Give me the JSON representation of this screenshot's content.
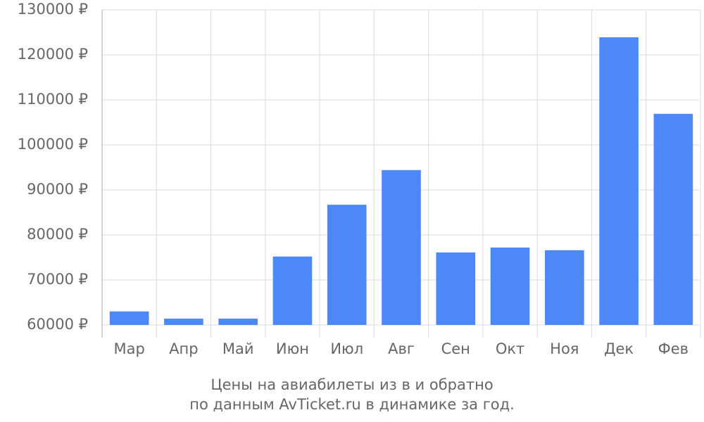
{
  "chart_data": {
    "type": "bar",
    "title": [
      "Цены на авиабилеты из  в  и обратно",
      "по данным AvTicket.ru в динамике за год."
    ],
    "categories": [
      "Мар",
      "Апр",
      "Май",
      "Июн",
      "Июл",
      "Авг",
      "Сен",
      "Окт",
      "Ноя",
      "Дек",
      "Фев"
    ],
    "values": [
      63000,
      61400,
      61400,
      75200,
      86700,
      94400,
      76100,
      77200,
      76600,
      123900,
      106900
    ],
    "color": "#4d88f9",
    "ylim": [
      60000,
      130000
    ],
    "yticks": [
      {
        "value": 60000,
        "label": "60000 ₽"
      },
      {
        "value": 70000,
        "label": "70000 ₽"
      },
      {
        "value": 80000,
        "label": "80000 ₽"
      },
      {
        "value": 90000,
        "label": "90000 ₽"
      },
      {
        "value": 100000,
        "label": "100000 ₽"
      },
      {
        "value": 110000,
        "label": "110000 ₽"
      },
      {
        "value": 120000,
        "label": "120000 ₽"
      },
      {
        "value": 130000,
        "label": "130000 ₽"
      }
    ],
    "grid": true
  }
}
